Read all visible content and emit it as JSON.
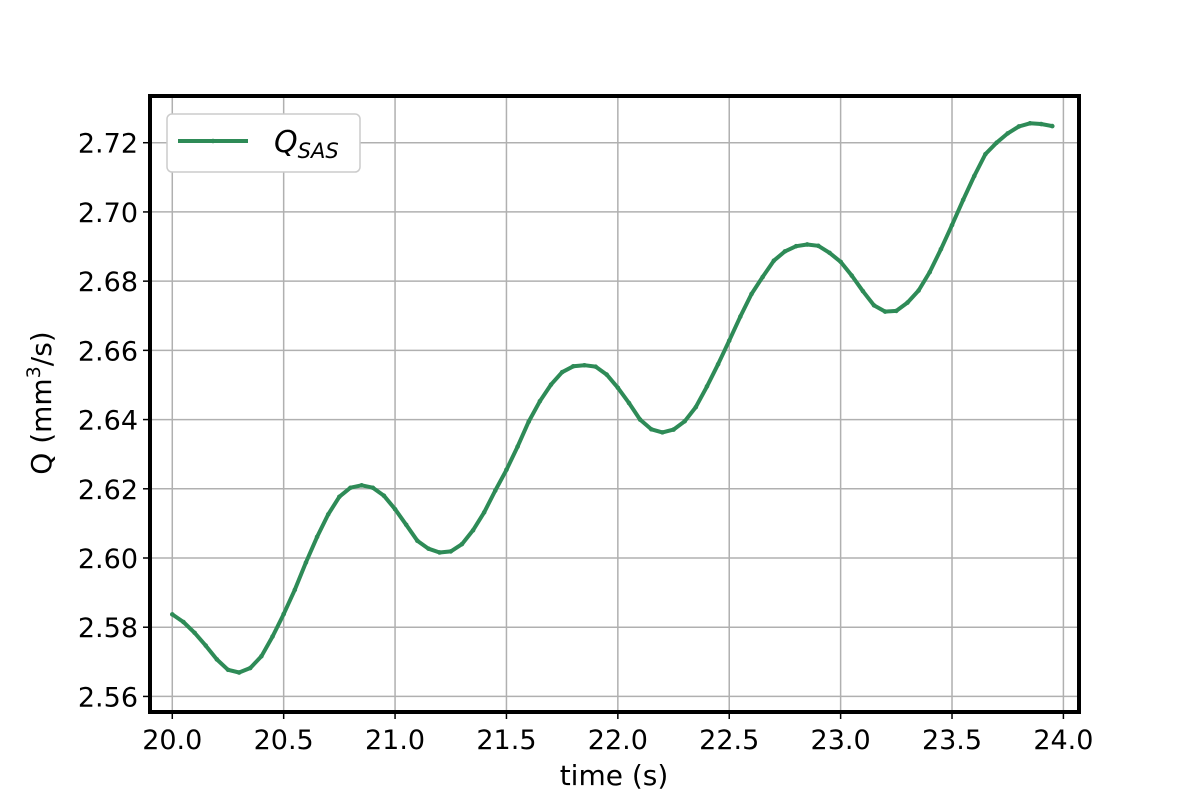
{
  "chart_data": {
    "type": "line",
    "title": "",
    "xlabel": "time (s)",
    "ylabel_main": "Q (mm",
    "ylabel_sup": "3",
    "ylabel_end": "/s)",
    "xlim": [
      19.9,
      24.07
    ],
    "ylim": [
      2.5555,
      2.7335
    ],
    "xticks": [
      20.0,
      20.5,
      21.0,
      21.5,
      22.0,
      22.5,
      23.0,
      23.5,
      24.0
    ],
    "xtick_labels": [
      "20.0",
      "20.5",
      "21.0",
      "21.5",
      "22.0",
      "22.5",
      "23.0",
      "23.5",
      "24.0"
    ],
    "yticks": [
      2.56,
      2.58,
      2.6,
      2.62,
      2.64,
      2.66,
      2.68,
      2.7,
      2.72
    ],
    "ytick_labels": [
      "2.56",
      "2.58",
      "2.60",
      "2.62",
      "2.64",
      "2.66",
      "2.68",
      "2.70",
      "2.72"
    ],
    "grid": true,
    "legend_position": "top-left",
    "series": [
      {
        "name_main": "Q",
        "name_sub": "SAS",
        "color": "#2e8b57",
        "marker": "dot",
        "x": [
          20.0,
          20.05,
          20.1,
          20.15,
          20.2,
          20.25,
          20.3,
          20.35,
          20.4,
          20.45,
          20.5,
          20.55,
          20.6,
          20.65,
          20.7,
          20.75,
          20.8,
          20.85,
          20.9,
          20.95,
          21.0,
          21.05,
          21.1,
          21.15,
          21.2,
          21.25,
          21.3,
          21.35,
          21.4,
          21.45,
          21.5,
          21.55,
          21.6,
          21.65,
          21.7,
          21.75,
          21.8,
          21.85,
          21.9,
          21.95,
          22.0,
          22.05,
          22.1,
          22.15,
          22.2,
          22.25,
          22.3,
          22.35,
          22.4,
          22.45,
          22.5,
          22.55,
          22.6,
          22.65,
          22.7,
          22.75,
          22.8,
          22.85,
          22.9,
          22.95,
          23.0,
          23.05,
          23.1,
          23.15,
          23.2,
          23.25,
          23.3,
          23.35,
          23.4,
          23.45,
          23.5,
          23.55,
          23.6,
          23.65,
          23.7,
          23.75,
          23.8,
          23.85,
          23.9,
          23.95
        ],
        "y": [
          2.5837,
          2.5815,
          2.5784,
          2.5747,
          2.5707,
          2.5677,
          2.5669,
          2.5682,
          2.5716,
          2.5773,
          2.5838,
          2.5908,
          2.5987,
          2.6061,
          2.6126,
          2.6177,
          2.6203,
          2.621,
          2.6203,
          2.618,
          2.6141,
          2.6096,
          2.605,
          2.6027,
          2.6016,
          2.6019,
          2.604,
          2.608,
          2.6132,
          2.6195,
          2.6255,
          2.6322,
          2.6394,
          2.6453,
          2.6501,
          2.6537,
          2.6554,
          2.6557,
          2.6553,
          2.653,
          2.6492,
          2.6448,
          2.64,
          2.6372,
          2.6363,
          2.6371,
          2.6395,
          2.6436,
          2.6496,
          2.656,
          2.6628,
          2.6698,
          2.6763,
          2.6812,
          2.6859,
          2.6886,
          2.6901,
          2.6906,
          2.6902,
          2.6882,
          2.6856,
          2.6816,
          2.6771,
          2.673,
          2.6712,
          2.6714,
          2.6738,
          2.6773,
          2.6826,
          2.6892,
          2.6962,
          2.7035,
          2.7104,
          2.7167,
          2.72,
          2.7227,
          2.7247,
          2.7256,
          2.7254,
          2.7248
        ]
      }
    ]
  }
}
